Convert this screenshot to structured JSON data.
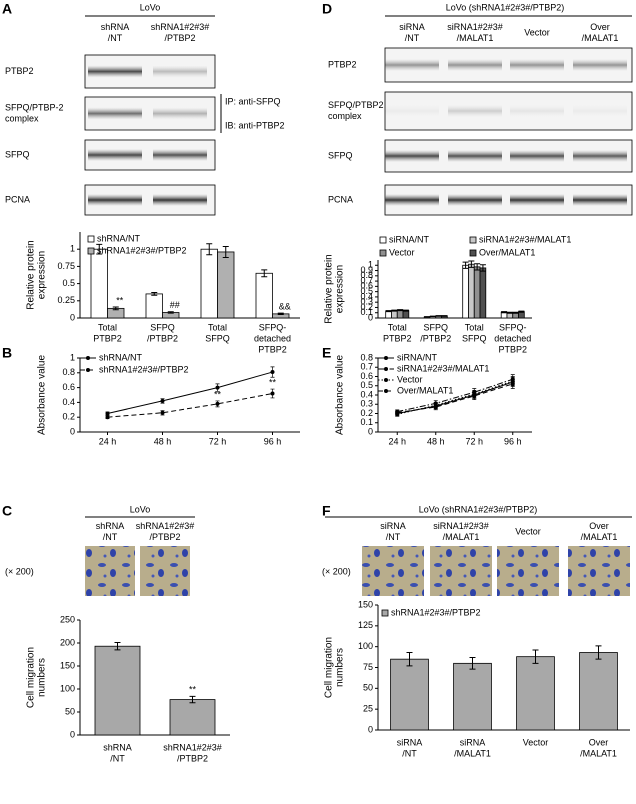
{
  "panels": [
    {
      "label": "A",
      "title": "LoVo",
      "lanes": [
        [
          "shRNA",
          "/NT"
        ],
        [
          "shRNA1#2#3#",
          "/PTBP2"
        ]
      ],
      "bands": [
        [
          "PTBP2"
        ],
        [
          "SFPQ/PTBP-2",
          "complex"
        ],
        [
          "SFPQ"
        ],
        [
          "PCNA"
        ]
      ],
      "notes": [
        "IP: anti-SFPQ",
        "IB: anti-PTBP2"
      ]
    },
    {
      "label": "D",
      "title": "LoVo (shRNA1#2#3#/PTBP2)",
      "lanes": [
        [
          "siRNA",
          "/NT"
        ],
        [
          "siRNA1#2#3#",
          "/MALAT1"
        ],
        [
          "Vector"
        ],
        [
          "Over",
          "/MALAT1"
        ]
      ],
      "bands": [
        [
          "PTBP2"
        ],
        [
          "SFPQ/PTBP2",
          "complex"
        ],
        [
          "SFPQ"
        ],
        [
          "PCNA"
        ]
      ]
    },
    {
      "label": "B"
    },
    {
      "label": "E"
    },
    {
      "label": "C",
      "title": "LoVo",
      "lanes": [
        [
          "shRNA",
          "/NT"
        ],
        [
          "shRNA1#2#3#",
          "/PTBP2"
        ]
      ],
      "magnification": "(× 200)"
    },
    {
      "label": "F",
      "title": "LoVo (shRNA1#2#3#/PTBP2)",
      "lanes": [
        [
          "siRNA",
          "/NT"
        ],
        [
          "siRNA1#2#3#",
          "/MALAT1"
        ],
        [
          "Vector"
        ],
        [
          "Over",
          "/MALAT1"
        ]
      ],
      "magnification": "(× 200)"
    }
  ],
  "chart_data": [
    {
      "type": "bar",
      "ylabel": [
        "Relative protein",
        "expression"
      ],
      "categories": [
        [
          "Total",
          "PTBP2"
        ],
        [
          "SFPQ",
          "/PTBP2"
        ],
        [
          "Total",
          "SFPQ"
        ],
        [
          "SFPQ-",
          "detached",
          "PTBP2"
        ]
      ],
      "series": [
        {
          "name": "shRNA/NT",
          "color": "#ffffff",
          "values": [
            1,
            0.35,
            1,
            0.65
          ],
          "errors": [
            0.07,
            0.02,
            0.08,
            0.05
          ]
        },
        {
          "name": "shRNA1#2#3#/PTBP2",
          "color": "#b0b0b0",
          "values": [
            0.14,
            0.08,
            0.96,
            0.06
          ],
          "errors": [
            0.02,
            0.01,
            0.08,
            0.01
          ],
          "annotations": [
            "**",
            "##",
            null,
            "&&"
          ]
        }
      ],
      "ylim": [
        0,
        1.25
      ],
      "yticks": [
        0,
        0.25,
        0.5,
        0.75,
        1
      ]
    },
    {
      "type": "bar",
      "ylabel": [
        "Relative protein",
        "expression"
      ],
      "categories": [
        [
          "Total",
          "PTBP2"
        ],
        [
          "SFPQ",
          "/PTBP2"
        ],
        [
          "Total",
          "SFPQ"
        ],
        [
          "SFPQ-",
          "detached",
          "PTBP2"
        ]
      ],
      "series": [
        {
          "name": "siRNA/NT",
          "color": "#ffffff",
          "values": [
            0.13,
            0.02,
            1,
            0.11
          ],
          "errors": [
            0.01,
            0.005,
            0.06,
            0.01
          ]
        },
        {
          "name": "siRNA1#2#3#/MALAT1",
          "color": "#c8c8c8",
          "values": [
            0.14,
            0.03,
            1.02,
            0.1
          ],
          "errors": [
            0.01,
            0.005,
            0.06,
            0.01
          ]
        },
        {
          "name": "Vector",
          "color": "#909090",
          "values": [
            0.15,
            0.04,
            0.97,
            0.1
          ],
          "errors": [
            0.01,
            0.005,
            0.06,
            0.01
          ]
        },
        {
          "name": "Over/MALAT1",
          "color": "#505050",
          "values": [
            0.14,
            0.04,
            0.95,
            0.12
          ],
          "errors": [
            0.01,
            0.005,
            0.06,
            0.01
          ]
        }
      ],
      "ylim": [
        0,
        1.1
      ],
      "yticks": [
        0,
        0.1,
        0.2,
        0.3,
        0.4,
        0.5,
        0.6,
        0.7,
        0.8,
        0.9,
        1
      ]
    },
    {
      "type": "line",
      "ylabel": "Absorbance value",
      "categories": [
        "24 h",
        "48 h",
        "72 h",
        "96 h"
      ],
      "series": [
        {
          "name": "shRNA/NT",
          "color": "#000000",
          "style": "solid",
          "values": [
            0.25,
            0.42,
            0.6,
            0.81
          ],
          "errors": [
            0.02,
            0.03,
            0.05,
            0.07
          ]
        },
        {
          "name": "shRNA1#2#3#/PTBP2",
          "color": "#000000",
          "style": "dashed",
          "values": [
            0.2,
            0.26,
            0.38,
            0.52
          ],
          "errors": [
            0.02,
            0.03,
            0.04,
            0.06
          ],
          "annotations": [
            null,
            "*",
            "**",
            "**"
          ]
        }
      ],
      "ylim": [
        0,
        1
      ],
      "yticks": [
        0,
        0.2,
        0.4,
        0.6,
        0.8,
        1
      ]
    },
    {
      "type": "line",
      "ylabel": "Absorbance value",
      "categories": [
        "24 h",
        "48 h",
        "72 h",
        "96 h"
      ],
      "series": [
        {
          "name": "siRNA/NT",
          "color": "#000000",
          "style": "solid",
          "values": [
            0.2,
            0.28,
            0.4,
            0.54
          ],
          "errors": [
            0.02,
            0.03,
            0.04,
            0.05
          ]
        },
        {
          "name": "siRNA1#2#3#/MALAT1",
          "color": "#000000",
          "style": "dashdot",
          "values": [
            0.22,
            0.31,
            0.43,
            0.57
          ],
          "errors": [
            0.02,
            0.03,
            0.04,
            0.05
          ]
        },
        {
          "name": "Vector",
          "color": "#000000",
          "style": "dotted",
          "values": [
            0.19,
            0.29,
            0.41,
            0.55
          ],
          "errors": [
            0.02,
            0.03,
            0.04,
            0.05
          ]
        },
        {
          "name": "Over/MALAT1",
          "color": "#000000",
          "style": "dashed",
          "values": [
            0.21,
            0.27,
            0.39,
            0.52
          ],
          "errors": [
            0.02,
            0.03,
            0.04,
            0.05
          ]
        }
      ],
      "ylim": [
        0,
        0.8
      ],
      "yticks": [
        0,
        0.1,
        0.2,
        0.3,
        0.4,
        0.5,
        0.6,
        0.7,
        0.8
      ]
    },
    {
      "type": "bar",
      "ylabel": [
        "Cell migration",
        "numbers"
      ],
      "categories": [
        [
          "shRNA",
          "/NT"
        ],
        [
          "shRNA1#2#3#",
          "/PTBP2"
        ]
      ],
      "series": [
        {
          "color": "#a8a8a8",
          "values": [
            193,
            77
          ],
          "errors": [
            8,
            7
          ],
          "annotations": [
            null,
            "**"
          ]
        }
      ],
      "ylim": [
        0,
        250
      ],
      "yticks": [
        0,
        50,
        100,
        150,
        200,
        250
      ]
    },
    {
      "type": "bar",
      "ylabel": [
        "Cell migration",
        "numbers"
      ],
      "categories": [
        [
          "siRNA",
          "/NT"
        ],
        [
          "siRNA",
          "/MALAT1"
        ],
        [
          "Vector"
        ],
        [
          "Over",
          "/MALAT1"
        ]
      ],
      "series": [
        {
          "name": "shRNA1#2#3#/PTBP2",
          "color": "#a8a8a8",
          "values": [
            85,
            80,
            88,
            93
          ],
          "errors": [
            8,
            7,
            8,
            8
          ]
        }
      ],
      "ylim": [
        0,
        150
      ],
      "yticks": [
        0,
        25,
        50,
        75,
        100,
        125,
        150
      ]
    }
  ]
}
